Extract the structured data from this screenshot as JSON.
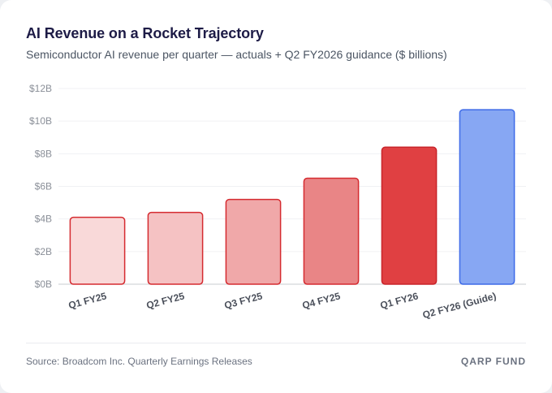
{
  "header": {
    "title": "AI Revenue on a Rocket Trajectory",
    "subtitle": "Semiconductor AI revenue per quarter — actuals + Q2 FY2026 guidance ($ billions)"
  },
  "footer": {
    "source": "Source: Broadcom Inc. Quarterly Earnings Releases",
    "brand": "QARP FUND"
  },
  "chart_data": {
    "type": "bar",
    "title": "AI Revenue on a Rocket Trajectory",
    "subtitle": "Semiconductor AI revenue per quarter — actuals + Q2 FY2026 guidance ($ billions)",
    "xlabel": "",
    "ylabel": "",
    "categories": [
      "Q1 FY25",
      "Q2 FY25",
      "Q3 FY25",
      "Q4 FY25",
      "Q1 FY26",
      "Q2 FY26 (Guide)"
    ],
    "values": [
      4.1,
      4.4,
      5.2,
      6.5,
      8.4,
      10.7
    ],
    "ylim": [
      0,
      12
    ],
    "yticks": [
      0,
      2,
      4,
      6,
      8,
      10,
      12
    ],
    "ytick_labels": [
      "$0B",
      "$2B",
      "$4B",
      "$6B",
      "$8B",
      "$10B",
      "$12B"
    ],
    "grid": true,
    "legend": "none",
    "bar_fills": [
      "#f9d9d9",
      "#f5c2c3",
      "#f0a8a9",
      "#e98586",
      "#e04042",
      "#87a7f3"
    ],
    "bar_strokes": [
      "#d52b30",
      "#d52b30",
      "#d52b30",
      "#d52b30",
      "#c8242a",
      "#3d6ae8"
    ]
  }
}
